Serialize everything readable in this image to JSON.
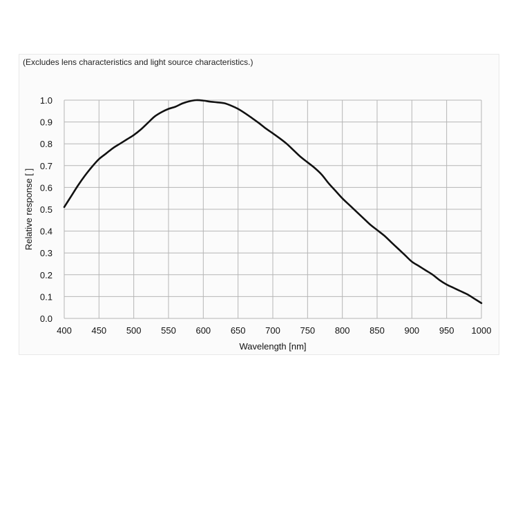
{
  "note": "(Excludes lens characteristics and light source characteristics.)",
  "chart_data": {
    "type": "line",
    "xlabel": "Wavelength [nm]",
    "ylabel": "Relative response [ ]",
    "xlim": [
      400,
      1000
    ],
    "ylim": [
      0,
      1.0
    ],
    "xticks": [
      400,
      450,
      500,
      550,
      600,
      650,
      700,
      750,
      800,
      850,
      900,
      950,
      1000
    ],
    "yticks": [
      "0.0",
      "0.1",
      "0.2",
      "0.3",
      "0.4",
      "0.5",
      "0.6",
      "0.7",
      "0.8",
      "0.9",
      "1.0"
    ],
    "grid": true,
    "line_color": "#111111",
    "series": [
      {
        "x": [
          400,
          410,
          420,
          430,
          440,
          450,
          460,
          470,
          480,
          490,
          500,
          510,
          520,
          530,
          540,
          550,
          560,
          570,
          580,
          590,
          600,
          610,
          620,
          630,
          640,
          650,
          660,
          670,
          680,
          690,
          700,
          710,
          720,
          730,
          740,
          750,
          760,
          770,
          780,
          790,
          800,
          810,
          820,
          830,
          840,
          850,
          860,
          870,
          880,
          890,
          900,
          910,
          920,
          930,
          940,
          950,
          960,
          970,
          980,
          990,
          1000
        ],
        "y": [
          0.51,
          0.56,
          0.61,
          0.655,
          0.695,
          0.73,
          0.755,
          0.78,
          0.8,
          0.82,
          0.84,
          0.865,
          0.895,
          0.925,
          0.945,
          0.96,
          0.97,
          0.985,
          0.995,
          1.0,
          0.998,
          0.993,
          0.99,
          0.986,
          0.975,
          0.96,
          0.94,
          0.918,
          0.895,
          0.87,
          0.848,
          0.825,
          0.8,
          0.77,
          0.74,
          0.715,
          0.69,
          0.66,
          0.62,
          0.585,
          0.55,
          0.52,
          0.49,
          0.46,
          0.43,
          0.405,
          0.38,
          0.35,
          0.32,
          0.29,
          0.26,
          0.24,
          0.22,
          0.2,
          0.175,
          0.155,
          0.14,
          0.125,
          0.11,
          0.09,
          0.07
        ]
      }
    ]
  }
}
